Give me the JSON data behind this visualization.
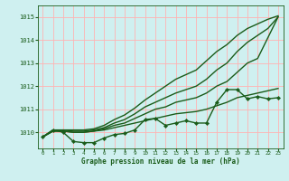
{
  "title": "Graphe pression niveau de la mer (hPa)",
  "bg_color": "#cceeff",
  "plot_bg": "#cff0f0",
  "grid_color": "#ffb3b3",
  "line_color": "#1a5c1a",
  "xlim": [
    -0.5,
    23.5
  ],
  "ylim": [
    1009.3,
    1015.5
  ],
  "yticks": [
    1010,
    1011,
    1012,
    1013,
    1014,
    1015
  ],
  "xticks": [
    0,
    1,
    2,
    3,
    4,
    5,
    6,
    7,
    8,
    9,
    10,
    11,
    12,
    13,
    14,
    15,
    16,
    17,
    18,
    19,
    20,
    21,
    22,
    23
  ],
  "series": [
    {
      "x": [
        0,
        1,
        2,
        3,
        4,
        5,
        6,
        7,
        8,
        9,
        10,
        11,
        12,
        13,
        14,
        15,
        16,
        17,
        18,
        19,
        20,
        21,
        22,
        23
      ],
      "y": [
        1009.8,
        1010.1,
        1010.0,
        1009.6,
        1009.55,
        1009.55,
        1009.75,
        1009.9,
        1009.95,
        1010.1,
        1010.55,
        1010.6,
        1010.3,
        1010.4,
        1010.5,
        1010.4,
        1010.4,
        1011.3,
        1011.85,
        1011.85,
        1011.45,
        1011.55,
        1011.45,
        1011.5
      ],
      "marker": "D",
      "markersize": 2.2,
      "linewidth": 1.0
    },
    {
      "x": [
        0,
        1,
        2,
        3,
        4,
        5,
        6,
        7,
        8,
        9,
        10,
        11,
        12,
        13,
        14,
        15,
        16,
        17,
        18,
        19,
        20,
        21,
        22,
        23
      ],
      "y": [
        1009.8,
        1010.05,
        1010.05,
        1010.0,
        1010.0,
        1010.05,
        1010.1,
        1010.2,
        1010.3,
        1010.4,
        1010.5,
        1010.6,
        1010.7,
        1010.8,
        1010.85,
        1010.9,
        1011.0,
        1011.15,
        1011.3,
        1011.5,
        1011.6,
        1011.7,
        1011.8,
        1011.9
      ],
      "marker": null,
      "markersize": 0,
      "linewidth": 1.0
    },
    {
      "x": [
        0,
        1,
        2,
        3,
        4,
        5,
        6,
        7,
        8,
        9,
        10,
        11,
        12,
        13,
        14,
        15,
        16,
        17,
        18,
        19,
        20,
        21,
        22,
        23
      ],
      "y": [
        1009.8,
        1010.05,
        1010.05,
        1010.0,
        1010.0,
        1010.05,
        1010.15,
        1010.3,
        1010.4,
        1010.6,
        1010.8,
        1011.0,
        1011.1,
        1011.3,
        1011.4,
        1011.5,
        1011.7,
        1012.0,
        1012.2,
        1012.6,
        1013.0,
        1013.2,
        1014.1,
        1015.0
      ],
      "marker": null,
      "markersize": 0,
      "linewidth": 1.0
    },
    {
      "x": [
        0,
        1,
        2,
        3,
        4,
        5,
        6,
        7,
        8,
        9,
        10,
        11,
        12,
        13,
        14,
        15,
        16,
        17,
        18,
        19,
        20,
        21,
        22,
        23
      ],
      "y": [
        1009.8,
        1010.05,
        1010.1,
        1010.05,
        1010.05,
        1010.1,
        1010.2,
        1010.4,
        1010.55,
        1010.8,
        1011.1,
        1011.3,
        1011.5,
        1011.7,
        1011.85,
        1012.0,
        1012.3,
        1012.7,
        1013.0,
        1013.5,
        1013.9,
        1014.2,
        1014.5,
        1015.0
      ],
      "marker": null,
      "markersize": 0,
      "linewidth": 1.0
    },
    {
      "x": [
        0,
        1,
        2,
        3,
        4,
        5,
        6,
        7,
        8,
        9,
        10,
        11,
        12,
        13,
        14,
        15,
        16,
        17,
        18,
        19,
        20,
        21,
        22,
        23
      ],
      "y": [
        1009.8,
        1010.1,
        1010.1,
        1010.1,
        1010.1,
        1010.15,
        1010.3,
        1010.55,
        1010.75,
        1011.05,
        1011.4,
        1011.7,
        1012.0,
        1012.3,
        1012.5,
        1012.7,
        1013.1,
        1013.5,
        1013.8,
        1014.2,
        1014.5,
        1014.7,
        1014.9,
        1015.05
      ],
      "marker": null,
      "markersize": 0,
      "linewidth": 1.0
    }
  ]
}
